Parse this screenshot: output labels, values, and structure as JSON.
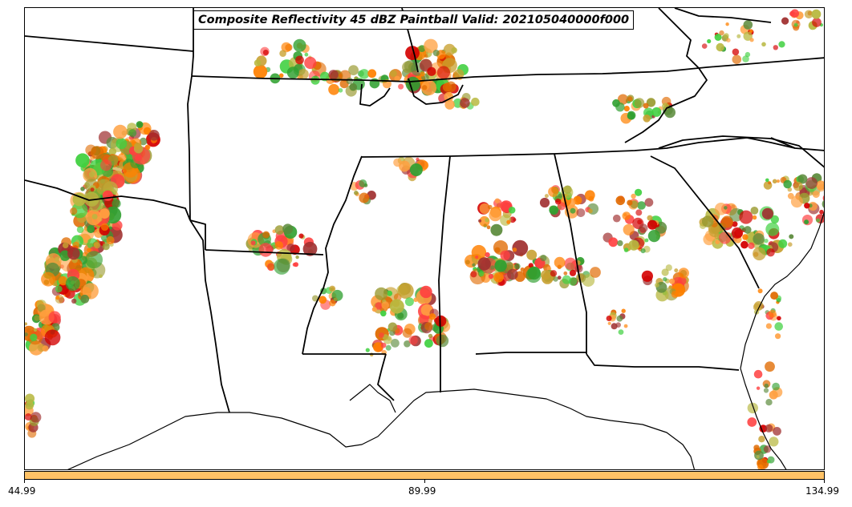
{
  "title": "Composite Reflectivity 45 dBZ Paintball Valid: 202105040000f000",
  "colorbar": {
    "color": "#ffc266",
    "ticks": [
      "44.99",
      "89.99",
      "134.99"
    ]
  },
  "palette": [
    "#ff8000",
    "#e06a00",
    "#ff4040",
    "#d40000",
    "#a03030",
    "#40d040",
    "#30a030",
    "#5a8a3a",
    "#9a9a30",
    "#b8b840",
    "#ffa040",
    "#c8a030"
  ]
}
